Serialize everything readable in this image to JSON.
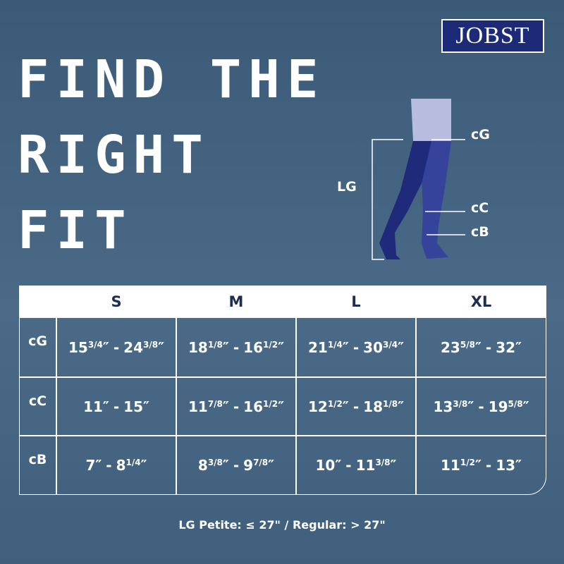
{
  "logo": "JOBST",
  "title": {
    "lines": [
      "FIND THE",
      "RIGHT",
      "FIT"
    ]
  },
  "diagram": {
    "labels": {
      "cG": "cG",
      "LG": "LG",
      "cC": "cC",
      "cB": "cB"
    }
  },
  "table": {
    "inch_mark": "″",
    "separator": "-",
    "columns": [
      "S",
      "M",
      "L",
      "XL"
    ],
    "rows": [
      {
        "label": "cG",
        "cells": [
          {
            "from": {
              "whole": "15",
              "frac": "3/4"
            },
            "to": {
              "whole": "24",
              "frac": "3/8"
            }
          },
          {
            "from": {
              "whole": "18",
              "frac": "1/8"
            },
            "to": {
              "whole": "16",
              "frac": "1/2"
            }
          },
          {
            "from": {
              "whole": "21",
              "frac": "1/4"
            },
            "to": {
              "whole": "30",
              "frac": "3/4"
            }
          },
          {
            "from": {
              "whole": "23",
              "frac": "5/8"
            },
            "to": {
              "whole": "32",
              "frac": null
            }
          }
        ]
      },
      {
        "label": "cC",
        "cells": [
          {
            "from": {
              "whole": "11",
              "frac": null
            },
            "to": {
              "whole": "15",
              "frac": null
            }
          },
          {
            "from": {
              "whole": "11",
              "frac": "7/8"
            },
            "to": {
              "whole": "16",
              "frac": "1/2"
            }
          },
          {
            "from": {
              "whole": "12",
              "frac": "1/2"
            },
            "to": {
              "whole": "18",
              "frac": "1/8"
            }
          },
          {
            "from": {
              "whole": "13",
              "frac": "3/8"
            },
            "to": {
              "whole": "19",
              "frac": "5/8"
            }
          }
        ]
      },
      {
        "label": "cB",
        "cells": [
          {
            "from": {
              "whole": "7",
              "frac": null
            },
            "to": {
              "whole": "8",
              "frac": "1/4"
            }
          },
          {
            "from": {
              "whole": "8",
              "frac": "3/8"
            },
            "to": {
              "whole": "9",
              "frac": "7/8"
            }
          },
          {
            "from": {
              "whole": "10",
              "frac": null
            },
            "to": {
              "whole": "11",
              "frac": "3/8"
            }
          },
          {
            "from": {
              "whole": "11",
              "frac": "1/2"
            },
            "to": {
              "whole": "13",
              "frac": null
            }
          }
        ]
      }
    ]
  },
  "footer": "LG Petite: ≤ 27\" / Regular: > 27\""
}
